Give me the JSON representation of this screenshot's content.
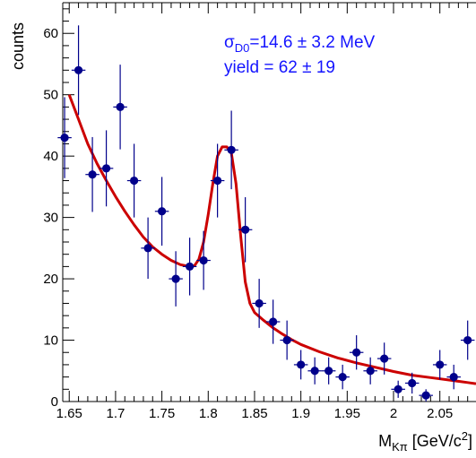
{
  "chart_data": {
    "type": "scatter",
    "ylabel": "counts",
    "xlabel_main": "M",
    "xlabel_sub": "Kπ",
    "xlabel_unit": " [GeV/c",
    "xlabel_sup": "2",
    "xlabel_close": "]",
    "xlim": [
      1.643,
      2.089
    ],
    "ylim": [
      0,
      65
    ],
    "x_ticks": [
      1.65,
      1.7,
      1.75,
      1.8,
      1.85,
      1.9,
      1.95,
      2.0,
      2.05
    ],
    "x_tick_labels": [
      "1.65",
      "1.7",
      "1.75",
      "1.8",
      "1.85",
      "1.9",
      "1.95",
      "2",
      "2.05"
    ],
    "y_ticks": [
      0,
      10,
      20,
      30,
      40,
      50,
      60
    ],
    "y_tick_labels": [
      "0",
      "10",
      "20",
      "30",
      "40",
      "50",
      "60"
    ],
    "annotation": {
      "line1_sigma": "σ",
      "line1_sub": "D0",
      "line1_rest": "=14.6 ± 3.2 MeV",
      "line2": "yield = 62 ± 19"
    },
    "series": [
      {
        "type": "points_with_errors",
        "color": "#00008b",
        "x": [
          1.645,
          1.66,
          1.675,
          1.69,
          1.705,
          1.72,
          1.735,
          1.75,
          1.765,
          1.78,
          1.795,
          1.81,
          1.825,
          1.84,
          1.855,
          1.87,
          1.885,
          1.9,
          1.915,
          1.93,
          1.945,
          1.96,
          1.975,
          1.99,
          2.005,
          2.02,
          2.035,
          2.05,
          2.065,
          2.08
        ],
        "y": [
          43,
          54,
          37,
          38,
          48,
          36,
          25,
          31,
          20,
          22,
          23,
          36,
          41,
          28,
          16,
          13,
          10,
          6,
          5,
          5,
          4,
          8,
          5,
          7,
          2,
          3,
          1,
          6,
          4,
          10
        ],
        "yerr": [
          6.6,
          7.3,
          6.1,
          6.2,
          6.9,
          6.0,
          5.0,
          5.6,
          4.5,
          4.7,
          4.8,
          6.0,
          6.4,
          5.3,
          4.0,
          3.6,
          3.2,
          2.4,
          2.2,
          2.2,
          2.0,
          2.8,
          2.2,
          2.6,
          1.4,
          1.7,
          1.0,
          2.4,
          2.0,
          3.2
        ],
        "xerr": 0.0075
      },
      {
        "type": "fit_curve",
        "color": "#cc0000",
        "x": [
          1.65,
          1.66,
          1.67,
          1.68,
          1.69,
          1.7,
          1.71,
          1.72,
          1.73,
          1.74,
          1.75,
          1.76,
          1.77,
          1.78,
          1.785,
          1.79,
          1.795,
          1.8,
          1.805,
          1.81,
          1.815,
          1.82,
          1.825,
          1.83,
          1.835,
          1.84,
          1.845,
          1.85,
          1.86,
          1.87,
          1.88,
          1.89,
          1.9,
          1.92,
          1.94,
          1.96,
          1.98,
          2.0,
          2.02,
          2.04,
          2.06,
          2.08,
          2.089
        ],
        "y": [
          50,
          46,
          42,
          38.8,
          36,
          33.4,
          31,
          28.8,
          26.8,
          25.2,
          24,
          23,
          22.3,
          22,
          22.1,
          23.2,
          26,
          30.5,
          35.5,
          40,
          41.5,
          41.5,
          40.5,
          35.5,
          27,
          19.5,
          16,
          14.5,
          13.2,
          12,
          11,
          10.1,
          9.3,
          8.1,
          7.1,
          6.3,
          5.6,
          4.9,
          4.3,
          3.9,
          3.5,
          3.1,
          2.9
        ]
      }
    ]
  }
}
